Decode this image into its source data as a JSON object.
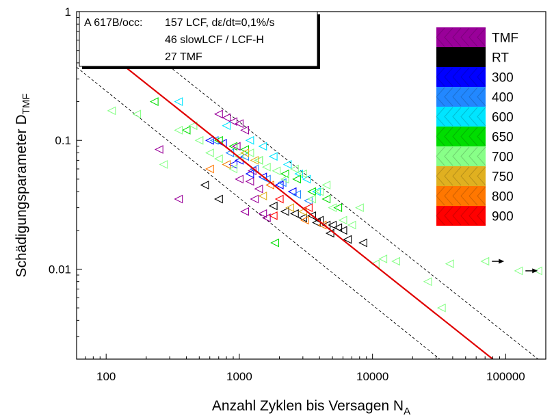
{
  "chart_data": {
    "type": "scatter",
    "xlabel": "Anzahl Zyklen bis Versagen N",
    "xlabel_sub": "A",
    "ylabel": "Schädigungsparameter D",
    "ylabel_sub": "TMF",
    "x_scale": "log",
    "y_scale": "log",
    "xlim": [
      60,
      200000
    ],
    "ylim": [
      0.002,
      1
    ],
    "x_ticks": [
      {
        "value": 100,
        "label": "100"
      },
      {
        "value": 1000,
        "label": "1000"
      },
      {
        "value": 10000,
        "label": "10000"
      },
      {
        "value": 100000,
        "label": "100000"
      }
    ],
    "y_ticks": [
      {
        "value": 1,
        "label": "1"
      },
      {
        "value": 0.1,
        "label": "0.1"
      },
      {
        "value": 0.01,
        "label": "0.01"
      }
    ],
    "info_box": {
      "material": "A 617B/occ:",
      "line1": "157 LCF, dε/dt=0,1%/s",
      "line2": "46 slowLCF / LCF-H",
      "line3": "27 TMF"
    },
    "legend_position": "top-right",
    "legend": [
      {
        "name": "TMF",
        "color": "#990099"
      },
      {
        "name": "RT",
        "color": "#000000"
      },
      {
        "name": "300",
        "color": "#0000ff"
      },
      {
        "name": "400",
        "color": "#2288ff"
      },
      {
        "name": "600",
        "color": "#00e5ff"
      },
      {
        "name": "650",
        "color": "#00dd00"
      },
      {
        "name": "700",
        "color": "#88ff88"
      },
      {
        "name": "750",
        "color": "#e0b020"
      },
      {
        "name": "800",
        "color": "#ff7700"
      },
      {
        "name": "900",
        "color": "#ff0000"
      }
    ],
    "fit_line": {
      "color": "#e00000",
      "x": [
        120,
        80000
      ],
      "y": [
        0.42,
        0.002
      ]
    },
    "scatter_band_upper": {
      "x": [
        260,
        175000
      ],
      "y": [
        0.42,
        0.002
      ]
    },
    "scatter_band_lower": {
      "x": [
        60,
        32000
      ],
      "y": [
        0.37,
        0.002
      ]
    },
    "runouts": [
      {
        "x": 70000,
        "y": 0.0115
      },
      {
        "x": 125000,
        "y": 0.0097
      }
    ],
    "series": [
      {
        "name": "TMF",
        "marker": "triangle-left",
        "color": "#990099",
        "x": [
          250,
          350,
          700,
          800,
          900,
          1000,
          1100,
          950,
          1200,
          1400,
          1000,
          1100,
          1300,
          1500,
          1250,
          1600
        ],
        "y": [
          0.085,
          0.035,
          0.16,
          0.15,
          0.14,
          0.135,
          0.12,
          0.09,
          0.048,
          0.042,
          0.05,
          0.028,
          0.035,
          0.027,
          0.058,
          0.025
        ]
      },
      {
        "name": "RT",
        "marker": "triangle-left",
        "color": "#000000",
        "x": [
          550,
          700,
          1800,
          2200,
          2600,
          3000,
          3500,
          4000,
          4500,
          5000,
          5500,
          6000,
          6500,
          8500,
          4800,
          3800
        ],
        "y": [
          0.045,
          0.035,
          0.031,
          0.028,
          0.027,
          0.025,
          0.026,
          0.024,
          0.022,
          0.022,
          0.021,
          0.02,
          0.017,
          0.016,
          0.019,
          0.023
        ]
      },
      {
        "name": "300",
        "marker": "triangle-left",
        "color": "#0000ff",
        "x": [
          600,
          750,
          900,
          1000,
          1200,
          1500,
          2000,
          2500
        ],
        "y": [
          0.1,
          0.095,
          0.065,
          0.07,
          0.055,
          0.052,
          0.045,
          0.04
        ]
      },
      {
        "name": "400",
        "marker": "triangle-left",
        "color": "#2288ff",
        "x": [
          650,
          850,
          1100,
          1300,
          1600,
          2100,
          2700,
          3300
        ],
        "y": [
          0.1,
          0.08,
          0.075,
          0.06,
          0.05,
          0.047,
          0.038,
          0.034
        ]
      },
      {
        "name": "600",
        "marker": "triangle-left",
        "color": "#00e5ff",
        "x": [
          350,
          800,
          1200,
          1500,
          1800,
          2300,
          2800,
          3200,
          3800
        ],
        "y": [
          0.2,
          0.13,
          0.1,
          0.09,
          0.075,
          0.065,
          0.055,
          0.05,
          0.04
        ]
      },
      {
        "name": "650",
        "marker": "triangle-left",
        "color": "#00dd00",
        "x": [
          230,
          400,
          700,
          900,
          1100,
          1400,
          1850,
          2200,
          2700,
          3500,
          4500,
          5500
        ],
        "y": [
          0.2,
          0.12,
          0.1,
          0.09,
          0.085,
          0.07,
          0.016,
          0.055,
          0.05,
          0.04,
          0.035,
          0.03
        ]
      },
      {
        "name": "700",
        "marker": "triangle-left",
        "color": "#88ff88",
        "x": [
          110,
          170,
          270,
          350,
          450,
          500,
          600,
          700,
          800,
          900,
          1000,
          1200,
          1400,
          1600,
          1900,
          2200,
          2600,
          3000,
          3500,
          4000,
          4500,
          5000,
          6000,
          7000,
          8000,
          10500,
          12000,
          15000,
          26000,
          33000,
          38000,
          70000,
          125000,
          175000
        ],
        "y": [
          0.17,
          0.16,
          0.065,
          0.12,
          0.13,
          0.1,
          0.08,
          0.072,
          0.065,
          0.06,
          0.075,
          0.08,
          0.07,
          0.062,
          0.058,
          0.05,
          0.06,
          0.055,
          0.035,
          0.04,
          0.045,
          0.03,
          0.024,
          0.022,
          0.03,
          0.011,
          0.012,
          0.0115,
          0.008,
          0.005,
          0.011,
          0.0115,
          0.0097,
          0.0097
        ]
      },
      {
        "name": "750",
        "marker": "triangle-left",
        "color": "#e0b020",
        "x": [
          1100,
          1300,
          1500,
          2400,
          3000
        ],
        "y": [
          0.08,
          0.07,
          0.037,
          0.03,
          0.028
        ]
      },
      {
        "name": "800",
        "marker": "triangle-left",
        "color": "#ff7700",
        "x": [
          600,
          800,
          1700,
          3100,
          4200
        ],
        "y": [
          0.06,
          0.065,
          0.045,
          0.024,
          0.022
        ]
      },
      {
        "name": "900",
        "marker": "triangle-left",
        "color": "#ff0000",
        "x": [
          1800,
          2000,
          3300
        ],
        "y": [
          0.026,
          0.035,
          0.03
        ]
      }
    ]
  }
}
